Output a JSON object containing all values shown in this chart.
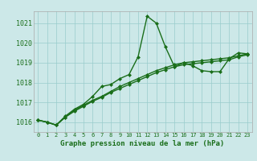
{
  "xlabel": "Graphe pression niveau de la mer (hPa)",
  "background_color": "#cce8e8",
  "line_color": "#1a6e1a",
  "grid_color": "#99cccc",
  "text_color": "#1a6e1a",
  "xlim": [
    -0.5,
    23.5
  ],
  "ylim": [
    1015.5,
    1021.6
  ],
  "yticks": [
    1016,
    1017,
    1018,
    1019,
    1020,
    1021
  ],
  "xticks": [
    0,
    1,
    2,
    3,
    4,
    5,
    6,
    7,
    8,
    9,
    10,
    11,
    12,
    13,
    14,
    15,
    16,
    17,
    18,
    19,
    20,
    21,
    22,
    23
  ],
  "series": [
    [
      1016.1,
      1016.0,
      1015.85,
      1016.3,
      1016.65,
      1016.9,
      1017.3,
      1017.8,
      1017.9,
      1018.2,
      1018.4,
      1019.3,
      1021.35,
      1021.0,
      1019.8,
      1018.8,
      1019.0,
      1018.85,
      1018.6,
      1018.55,
      1018.55,
      1019.2,
      1019.5,
      1019.45
    ],
    [
      1016.1,
      1016.0,
      1015.85,
      1016.25,
      1016.6,
      1016.85,
      1017.1,
      1017.3,
      1017.55,
      1017.8,
      1018.0,
      1018.2,
      1018.4,
      1018.6,
      1018.75,
      1018.9,
      1019.0,
      1019.05,
      1019.1,
      1019.15,
      1019.2,
      1019.25,
      1019.35,
      1019.45
    ],
    [
      1016.1,
      1016.0,
      1015.85,
      1016.25,
      1016.55,
      1016.8,
      1017.05,
      1017.25,
      1017.5,
      1017.7,
      1017.9,
      1018.1,
      1018.3,
      1018.5,
      1018.65,
      1018.8,
      1018.9,
      1018.95,
      1019.0,
      1019.05,
      1019.1,
      1019.15,
      1019.3,
      1019.4
    ]
  ],
  "marker": "D",
  "markersize": 2.0,
  "linewidth": 1.0,
  "xlabel_fontsize": 6.5,
  "ytick_fontsize": 6,
  "xtick_fontsize": 5
}
